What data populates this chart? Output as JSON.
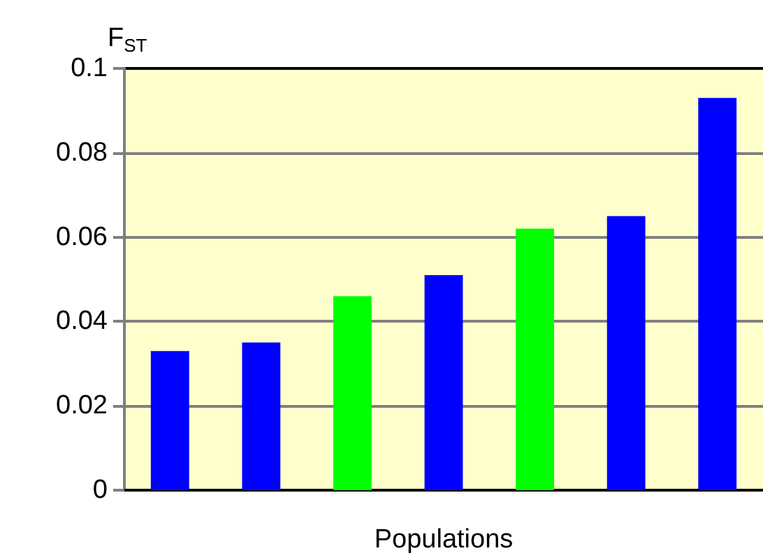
{
  "chart_data": {
    "type": "bar",
    "xlabel": "Populations",
    "ylabel": "F$_{ST}$",
    "categories": [
      null,
      null,
      null,
      null,
      null,
      null,
      null
    ],
    "values": [
      0.033,
      0.035,
      0.046,
      0.051,
      0.062,
      0.065,
      0.093
    ],
    "colors": [
      "#0000ff",
      "#0000ff",
      "#00ff00",
      "#0000ff",
      "#00ff00",
      "#0000ff",
      "#0000ff"
    ],
    "ylim": [
      0,
      0.1
    ],
    "yticks": [
      0,
      0.02,
      0.04,
      0.06,
      0.08,
      0.1
    ],
    "grid": "y"
  }
}
